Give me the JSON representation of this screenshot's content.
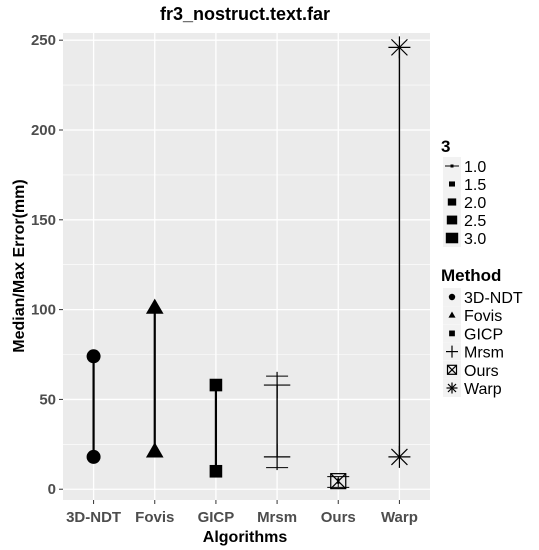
{
  "chart_data": {
    "type": "scatter",
    "title": "fr3_nostruct.text.far",
    "xlabel": "Algorithms",
    "ylabel": "Median/Max Error(mm)",
    "categories": [
      "3D-NDT",
      "Fovis",
      "GICP",
      "Mrsm",
      "Ours",
      "Warp"
    ],
    "ylim": [
      -6,
      254
    ],
    "yticks": [
      0,
      50,
      100,
      150,
      200,
      250
    ],
    "grid": true,
    "background": "#ebebeb",
    "grid_color": "#ffffff",
    "series": [
      {
        "name": "3D-NDT",
        "shape": "circle",
        "min": 18,
        "max": 74
      },
      {
        "name": "Fovis",
        "shape": "triangle",
        "min": 21,
        "max": 101
      },
      {
        "name": "GICP",
        "shape": "square",
        "min": 10,
        "max": 58
      },
      {
        "name": "Mrsm",
        "shape": "plus",
        "min": 18,
        "max": 58
      },
      {
        "name": "Ours",
        "shape": "boxed-x",
        "min": 3,
        "max": 6
      },
      {
        "name": "Warp",
        "shape": "asterisk",
        "min": 18,
        "max": 246
      }
    ],
    "errorbars": [
      {
        "category": "Mrsm",
        "low": 12,
        "high": 63
      },
      {
        "category": "Ours",
        "low": 1,
        "high": 7
      }
    ],
    "legend": {
      "placement": "right",
      "size_title": "3",
      "size_entries": [
        "1.0",
        "1.5",
        "2.0",
        "2.5",
        "3.0"
      ],
      "method_title": "Method",
      "method_entries": [
        "3D-NDT",
        "Fovis",
        "GICP",
        "Mrsm",
        "Ours",
        "Warp"
      ]
    }
  }
}
